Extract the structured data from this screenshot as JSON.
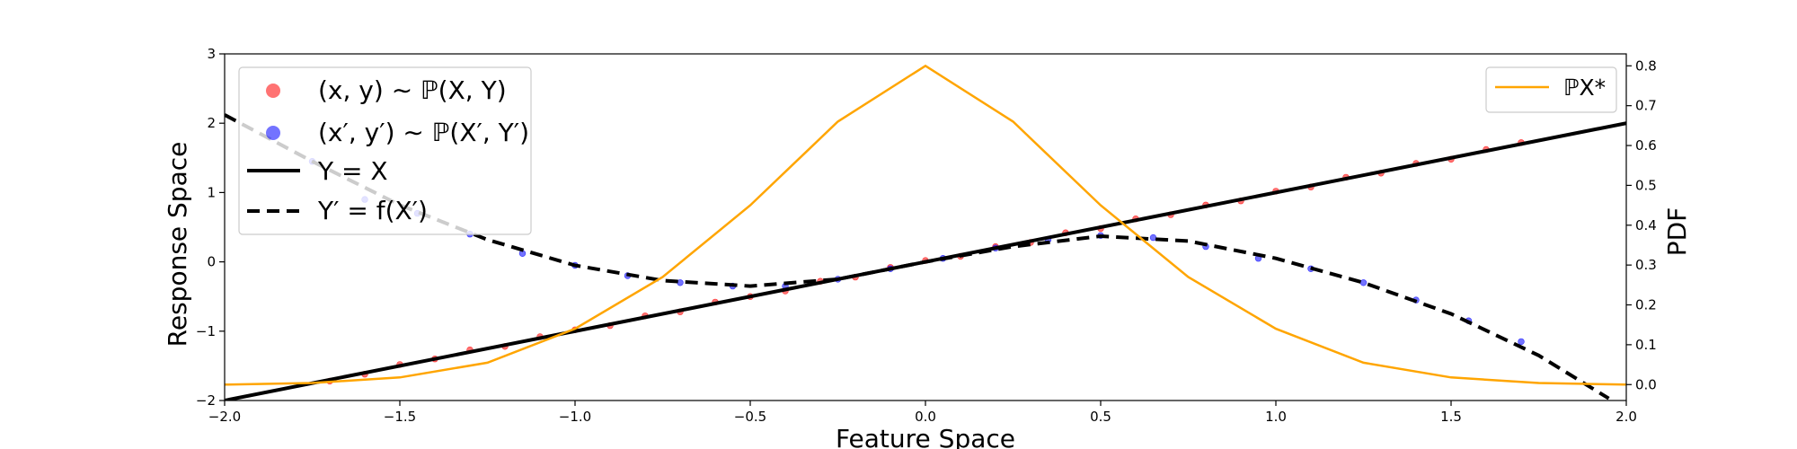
{
  "chart_data": {
    "type": "scatter",
    "xlabel": "Feature Space",
    "ylabel": "Response Space",
    "y2label": "PDF",
    "xlim": [
      -2.0,
      2.0
    ],
    "ylim": [
      -2,
      3
    ],
    "y2lim": [
      -0.04,
      0.83
    ],
    "x_ticks": [
      "−2.0",
      "−1.5",
      "−1.0",
      "−0.5",
      "0.0",
      "0.5",
      "1.0",
      "1.5",
      "2.0"
    ],
    "y_ticks": [
      "−2",
      "−1",
      "0",
      "1",
      "2",
      "3"
    ],
    "y2_ticks": [
      "0.0",
      "0.1",
      "0.2",
      "0.3",
      "0.4",
      "0.5",
      "0.6",
      "0.7",
      "0.8"
    ],
    "legend_left_position": "upper-left",
    "legend_right_position": "upper-right",
    "series": [
      {
        "name": "(x, y) ∼ ℙ(X, Y)",
        "kind": "scatter",
        "color": "#ff0000",
        "relation": "y = x",
        "points": [
          [
            -1.7,
            -1.72
          ],
          [
            -1.6,
            -1.62
          ],
          [
            -1.5,
            -1.48
          ],
          [
            -1.4,
            -1.4
          ],
          [
            -1.3,
            -1.27
          ],
          [
            -1.2,
            -1.22
          ],
          [
            -1.1,
            -1.08
          ],
          [
            -1.0,
            -0.98
          ],
          [
            -0.9,
            -0.92
          ],
          [
            -0.8,
            -0.78
          ],
          [
            -0.7,
            -0.72
          ],
          [
            -0.6,
            -0.58
          ],
          [
            -0.5,
            -0.5
          ],
          [
            -0.4,
            -0.42
          ],
          [
            -0.3,
            -0.28
          ],
          [
            -0.2,
            -0.22
          ],
          [
            -0.1,
            -0.08
          ],
          [
            0.0,
            0.02
          ],
          [
            0.1,
            0.08
          ],
          [
            0.2,
            0.22
          ],
          [
            0.3,
            0.28
          ],
          [
            0.4,
            0.42
          ],
          [
            0.5,
            0.48
          ],
          [
            0.6,
            0.62
          ],
          [
            0.7,
            0.68
          ],
          [
            0.8,
            0.82
          ],
          [
            0.9,
            0.88
          ],
          [
            1.0,
            1.02
          ],
          [
            1.1,
            1.08
          ],
          [
            1.2,
            1.22
          ],
          [
            1.3,
            1.28
          ],
          [
            1.4,
            1.42
          ],
          [
            1.5,
            1.48
          ],
          [
            1.6,
            1.62
          ],
          [
            1.7,
            1.72
          ]
        ]
      },
      {
        "name": "(x′, y′) ∼ ℙ(X′, Y′)",
        "kind": "scatter",
        "color": "#0000ff",
        "relation": "y′ = f(x′)",
        "points": [
          [
            -1.75,
            1.45
          ],
          [
            -1.6,
            0.9
          ],
          [
            -1.45,
            0.7
          ],
          [
            -1.3,
            0.4
          ],
          [
            -1.15,
            0.12
          ],
          [
            -1.0,
            -0.05
          ],
          [
            -0.85,
            -0.2
          ],
          [
            -0.7,
            -0.3
          ],
          [
            -0.55,
            -0.35
          ],
          [
            -0.4,
            -0.35
          ],
          [
            -0.25,
            -0.25
          ],
          [
            -0.1,
            -0.1
          ],
          [
            0.05,
            0.05
          ],
          [
            0.2,
            0.2
          ],
          [
            0.35,
            0.32
          ],
          [
            0.5,
            0.38
          ],
          [
            0.65,
            0.35
          ],
          [
            0.8,
            0.22
          ],
          [
            0.95,
            0.05
          ],
          [
            1.1,
            -0.1
          ],
          [
            1.25,
            -0.3
          ],
          [
            1.4,
            -0.55
          ],
          [
            1.55,
            -0.85
          ],
          [
            1.7,
            -1.15
          ]
        ]
      },
      {
        "name": "Y = X",
        "kind": "line",
        "style": "solid",
        "color": "#000000",
        "x": [
          -2.0,
          2.0
        ],
        "y": [
          -2.0,
          2.0
        ]
      },
      {
        "name": "Y′ = f(X′)",
        "kind": "line",
        "style": "dashed",
        "color": "#000000",
        "x": [
          -2.0,
          -1.75,
          -1.5,
          -1.25,
          -1.0,
          -0.75,
          -0.5,
          -0.25,
          0.0,
          0.25,
          0.5,
          0.75,
          1.0,
          1.25,
          1.5,
          1.75,
          1.95
        ],
        "y": [
          2.12,
          1.45,
          0.82,
          0.32,
          -0.05,
          -0.27,
          -0.35,
          -0.25,
          0.0,
          0.22,
          0.37,
          0.3,
          0.05,
          -0.3,
          -0.75,
          -1.35,
          -1.97
        ]
      },
      {
        "name": "ℙX*",
        "kind": "line",
        "style": "solid",
        "axis": "right",
        "color": "#ffa500",
        "x": [
          -2.0,
          -1.75,
          -1.5,
          -1.25,
          -1.0,
          -0.75,
          -0.5,
          -0.25,
          0.0,
          0.25,
          0.5,
          0.75,
          1.0,
          1.25,
          1.5,
          1.75,
          2.0
        ],
        "y": [
          0.0,
          0.004,
          0.018,
          0.055,
          0.14,
          0.27,
          0.45,
          0.66,
          0.8,
          0.66,
          0.45,
          0.27,
          0.14,
          0.055,
          0.018,
          0.004,
          0.0
        ]
      }
    ]
  },
  "legend_left": {
    "red_label": "(x, y) ∼ ℙ(X, Y)",
    "blue_label": "(x′, y′) ∼ ℙ(X′, Y′)",
    "solid_label": "Y = X",
    "dashed_label": "Y′ = f(X′)"
  },
  "legend_right": {
    "orange_label": "ℙX*"
  }
}
